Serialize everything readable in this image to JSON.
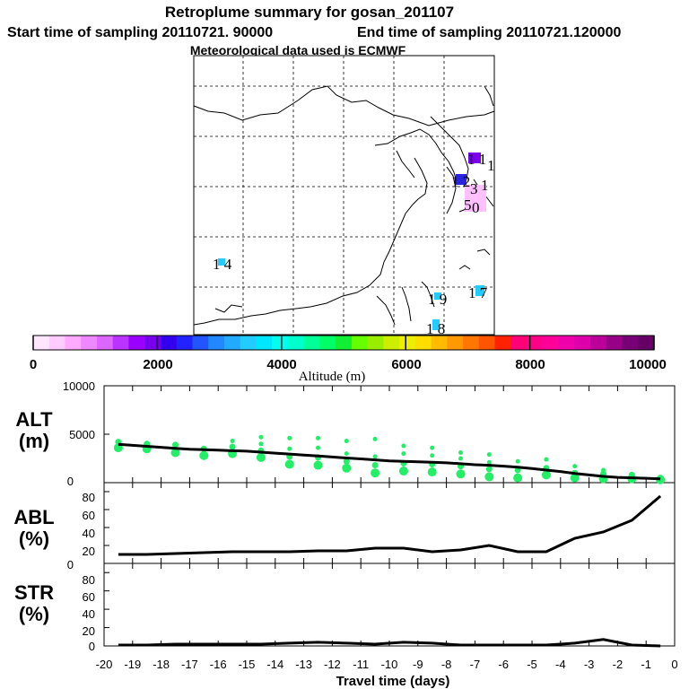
{
  "title": {
    "line1": "Retroplume summary for gosan_201107",
    "start_label": "Start time of sampling 20110721. 90000",
    "end_label": "End time of sampling 20110721.120000",
    "met_label": "Meteorological data used is ECMWF"
  },
  "map": {
    "labels": [
      {
        "text": "1 4",
        "color": "#00ccff"
      },
      {
        "text": "1 9",
        "color": "#00ccff"
      },
      {
        "text": "1 7",
        "color": "#00ccff"
      },
      {
        "text": "1 8",
        "color": "#00ccff"
      },
      {
        "text": "1 1",
        "color": "#6600ff"
      },
      {
        "text": "1 2",
        "color": "#3300ff"
      },
      {
        "text": "1",
        "color": "#000000"
      },
      {
        "text": "3",
        "color": "#ff99ff"
      },
      {
        "text": "5",
        "color": "#ff99ff"
      },
      {
        "text": "0",
        "color": "#ff99ff"
      },
      {
        "text": "1",
        "color": "#ff99ff"
      }
    ]
  },
  "colorbar": {
    "min": 0,
    "max": 10000,
    "tick_labels": [
      "0",
      "2000",
      "4000",
      "6000",
      "8000",
      "10000"
    ],
    "title": "Altitude (m)",
    "colors": [
      "#ffe6ff",
      "#ffccff",
      "#ffaaff",
      "#ee88ff",
      "#dd66ff",
      "#bb33ff",
      "#9900ff",
      "#7700ee",
      "#3300ee",
      "#2222ff",
      "#2255ff",
      "#2288ff",
      "#22aaff",
      "#22ccff",
      "#00e6ff",
      "#00ffee",
      "#00ffcc",
      "#00ff99",
      "#00ff66",
      "#11ee33",
      "#66ff00",
      "#99ee00",
      "#ccee00",
      "#eeee00",
      "#ffdd00",
      "#ffbb00",
      "#ff9900",
      "#ff7700",
      "#ff5500",
      "#ff2200",
      "#ff0077",
      "#ff0088",
      "#ff0099",
      "#ee00aa",
      "#dd00aa",
      "#bb0099",
      "#990088",
      "#770077",
      "#660066"
    ]
  },
  "chart_data": [
    {
      "type": "line",
      "panel": "ALT",
      "ylabel": "ALT\n(m)",
      "ylabel_line1": "ALT",
      "ylabel_line2": "(m)",
      "ylim": [
        0,
        10000
      ],
      "yticks": [
        "10000",
        "5000",
        "0"
      ],
      "xlim": [
        -20,
        0
      ],
      "x": [
        -19.5,
        -19,
        -18.5,
        -18,
        -17.5,
        -17,
        -16.5,
        -16,
        -15.5,
        -15,
        -14.5,
        -14,
        -13.5,
        -13,
        -12.5,
        -12,
        -11.5,
        -11,
        -10.5,
        -10,
        -9.5,
        -9,
        -8.5,
        -8,
        -7.5,
        -7,
        -6.5,
        -6,
        -5.5,
        -5,
        -4.5,
        -4,
        -3.5,
        -3,
        -2.5,
        -2,
        -1.5,
        -1,
        -0.5
      ],
      "mean_altitude": [
        3950,
        3850,
        3750,
        3650,
        3550,
        3450,
        3400,
        3350,
        3300,
        3250,
        3150,
        3050,
        2950,
        2850,
        2750,
        2650,
        2550,
        2450,
        2350,
        2250,
        2200,
        2150,
        2100,
        2050,
        1950,
        1850,
        1800,
        1700,
        1600,
        1450,
        1300,
        1150,
        950,
        800,
        650,
        550,
        500,
        450,
        400
      ],
      "clusters": [
        {
          "x": -19.5,
          "alts": [
            3600,
            4200
          ]
        },
        {
          "x": -18.5,
          "alts": [
            3500,
            4000
          ]
        },
        {
          "x": -17.5,
          "alts": [
            3100,
            3900
          ]
        },
        {
          "x": -16.5,
          "alts": [
            2800,
            3500
          ]
        },
        {
          "x": -15.5,
          "alts": [
            3000,
            3700,
            4300
          ]
        },
        {
          "x": -14.5,
          "alts": [
            2600,
            3300,
            4000,
            4700
          ]
        },
        {
          "x": -13.5,
          "alts": [
            1900,
            2700,
            3500,
            4600
          ]
        },
        {
          "x": -12.5,
          "alts": [
            1800,
            2600,
            3600,
            4600
          ]
        },
        {
          "x": -11.5,
          "alts": [
            1500,
            2200,
            3000,
            4300
          ]
        },
        {
          "x": -10.5,
          "alts": [
            1000,
            1800,
            2700,
            4500
          ]
        },
        {
          "x": -9.5,
          "alts": [
            1200,
            2000,
            3000,
            3800
          ]
        },
        {
          "x": -8.5,
          "alts": [
            1100,
            1900,
            2800,
            3600
          ]
        },
        {
          "x": -7.5,
          "alts": [
            900,
            1700,
            2500,
            3100
          ]
        },
        {
          "x": -6.5,
          "alts": [
            600,
            1400,
            2100,
            2900
          ]
        },
        {
          "x": -5.5,
          "alts": [
            500,
            1300,
            2200
          ]
        },
        {
          "x": -4.5,
          "alts": [
            800,
            1500,
            2400
          ]
        },
        {
          "x": -3.5,
          "alts": [
            500,
            1000,
            1700
          ]
        },
        {
          "x": -2.5,
          "alts": [
            400,
            900,
            1300
          ]
        },
        {
          "x": -1.5,
          "alts": [
            400,
            800
          ]
        },
        {
          "x": -0.5,
          "alts": [
            300,
            500
          ]
        }
      ]
    },
    {
      "type": "line",
      "panel": "ABL",
      "ylabel_line1": "ABL",
      "ylabel_line2": "(%)",
      "ylim": [
        0,
        90
      ],
      "yticks": [
        "80",
        "60",
        "40",
        "20",
        "0"
      ],
      "xlim": [
        -20,
        0
      ],
      "x": [
        -19.5,
        -18.5,
        -17.5,
        -16.5,
        -15.5,
        -14.5,
        -13.5,
        -12.5,
        -11.5,
        -10.5,
        -9.5,
        -8.5,
        -7.5,
        -6.5,
        -5.5,
        -4.5,
        -3.5,
        -2.5,
        -1.5,
        -0.5
      ],
      "values": [
        10,
        10,
        11,
        12,
        13,
        13,
        13,
        14,
        14,
        17,
        17,
        13,
        15,
        20,
        13,
        13,
        28,
        35,
        48,
        75
      ]
    },
    {
      "type": "line",
      "panel": "STR",
      "ylabel_line1": "STR",
      "ylabel_line2": "(%)",
      "ylim": [
        0,
        90
      ],
      "yticks": [
        "80",
        "60",
        "40",
        "20",
        "0"
      ],
      "xlim": [
        -20,
        0
      ],
      "xticks": [
        "-20",
        "-19",
        "-18",
        "-17",
        "-16",
        "-15",
        "-14",
        "-13",
        "-12",
        "-11",
        "-10",
        "-9",
        "-8",
        "-7",
        "-6",
        "-5",
        "-4",
        "-3",
        "-2",
        "-1",
        "0"
      ],
      "xlabel": "Travel time (days)",
      "x": [
        -19.5,
        -18.5,
        -17.5,
        -16.5,
        -15.5,
        -14.5,
        -13.5,
        -12.5,
        -11.5,
        -10.5,
        -9.5,
        -8.5,
        -7.5,
        -6.5,
        -5.5,
        -4.5,
        -3.5,
        -2.5,
        -1.5,
        -0.5
      ],
      "values": [
        1,
        1,
        2,
        2,
        2,
        2,
        3,
        4,
        3,
        2,
        4,
        3,
        1,
        1,
        1,
        1,
        3,
        7,
        1,
        0
      ]
    }
  ]
}
